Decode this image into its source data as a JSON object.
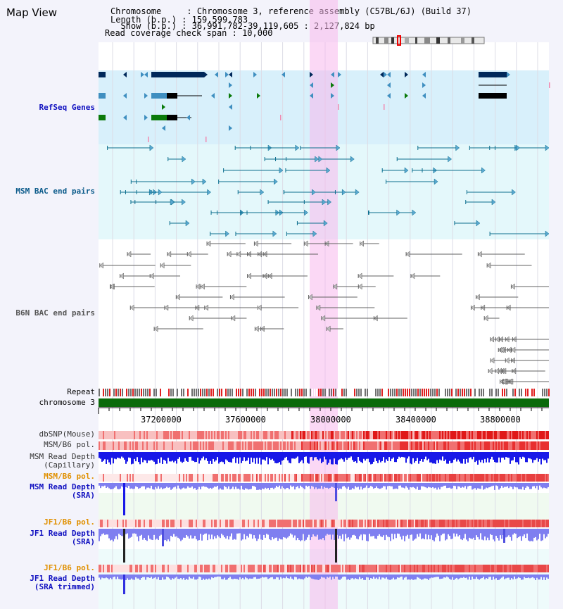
{
  "header": {
    "title": "Map View",
    "info_lines": [
      "Chromosome     : Chromosome 3, reference assembly (C57BL/6J) (Build 37)",
      "Length (b.p.) : 159,599,783",
      "  Show (b.p.) : 36,991,782-39,119,605 : 2,127,824 bp",
      "Read coverage check span : 10,000"
    ]
  },
  "tracks": {
    "refseq": "RefSeq Genes",
    "msm_bac": "MSM BAC end pairs",
    "b6n_bac": "B6N BAC end pairs",
    "repeat": "Repeat",
    "chromosome": "chromosome 3",
    "dbsnp": "dbSNP(Mouse)",
    "msm_b6_pol": "MSM/B6 pol.",
    "msm_depth_cap_1": "MSM Read Depth",
    "msm_depth_cap_2": "(Capillary)",
    "msm_b6_pol2": "MSM/B6 pol.",
    "msm_depth_sra_1": "MSM Read Depth",
    "msm_depth_sra_2": "(SRA)",
    "jf1_b6_pol": "JF1/B6 pol.",
    "jf1_depth_sra_1": "JF1 Read Depth",
    "jf1_depth_sra_2": "(SRA)",
    "jf1_b6_pol2": "JF1/B6 pol.",
    "jf1_trim_1": "JF1 Read Depth",
    "jf1_trim_2": "(SRA trimmed)"
  },
  "axis": {
    "ticks": [
      "37200000",
      "37600000",
      "38000000",
      "38400000",
      "38800000"
    ]
  },
  "colors": {
    "gene_dark": "#00285a",
    "gene_blue": "#3f8fc0",
    "gene_green": "#0a7a0a",
    "msm_line": "#0b6e8e",
    "b6n_line": "#606060",
    "highlight": "#f7b8ec",
    "refseq_bg": "#d8f0fb",
    "msm_bg": "#e4f8fb",
    "chrom": "#0a6a0a",
    "depth_blue": "#1818e8",
    "depth_light": "#7f7ff0",
    "pol_red": "#e83030",
    "label_blue": "#1010c0",
    "label_orange": "#e09000",
    "label_teal": "#0a5a8a"
  }
}
